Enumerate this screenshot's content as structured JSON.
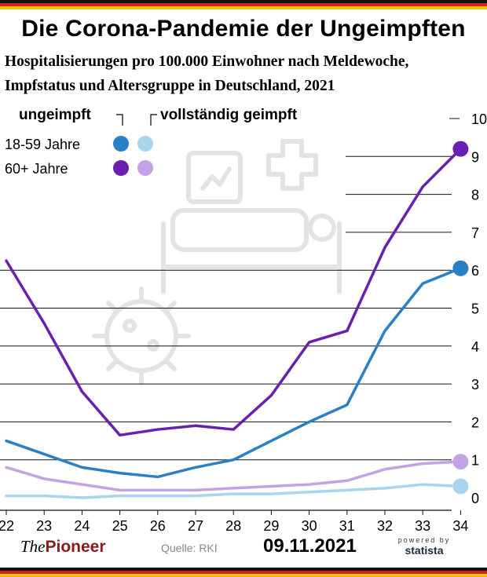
{
  "title": "Die Corona-Pandemie der Ungeimpften",
  "subtitle_line1": "Hospitalisierungen pro 100.000 Einwohner nach Meldewoche,",
  "subtitle_line2": "Impfstatus und Altersgruppe in Deutschland, 2021",
  "legend": {
    "col1": "ungeimpft",
    "col2": "vollständig geimpft",
    "row1": "18-59 Jahre",
    "row2": "60+ Jahre"
  },
  "footer": {
    "brand_the": "The",
    "brand_pioneer": "Pioneer",
    "source": "Quelle: RKI",
    "date": "09.11.2021",
    "powered_by": "powered by",
    "statista": "statista"
  },
  "colors": {
    "unvax_young": "#2a7fc6",
    "unvax_old": "#6a1fb0",
    "vax_young": "#a8d4ee",
    "vax_old": "#c4a2e6",
    "flag_black": "#111111",
    "flag_red": "#d21f1f",
    "flag_gold": "#f2c200"
  },
  "chart_data": {
    "type": "line",
    "x": [
      22,
      23,
      24,
      25,
      26,
      27,
      28,
      29,
      30,
      31,
      32,
      33,
      34
    ],
    "xlabels": [
      "22",
      "23",
      "24",
      "25",
      "26",
      "27",
      "28",
      "29",
      "30",
      "31",
      "32",
      "33",
      "34"
    ],
    "ylim": [
      0,
      10
    ],
    "yticks": [
      0,
      1,
      2,
      3,
      4,
      5,
      6,
      7,
      8,
      9,
      10
    ],
    "grid": true,
    "axis_position": "right",
    "series": [
      {
        "values": [
          6.25,
          4.6,
          2.8,
          1.65,
          1.8,
          1.9,
          1.8,
          2.7,
          4.1,
          4.4,
          6.6,
          8.2,
          9.2
        ]
      },
      {
        "values": [
          1.5,
          1.15,
          0.8,
          0.65,
          0.55,
          0.8,
          1.0,
          1.5,
          2.0,
          2.45,
          4.4,
          5.65,
          6.05
        ]
      },
      {
        "values": [
          0.8,
          0.5,
          0.35,
          0.2,
          0.2,
          0.2,
          0.25,
          0.3,
          0.35,
          0.45,
          0.75,
          0.9,
          0.95
        ]
      },
      {
        "values": [
          0.05,
          0.05,
          0.0,
          0.05,
          0.05,
          0.05,
          0.1,
          0.1,
          0.15,
          0.2,
          0.25,
          0.35,
          0.3
        ]
      }
    ]
  }
}
